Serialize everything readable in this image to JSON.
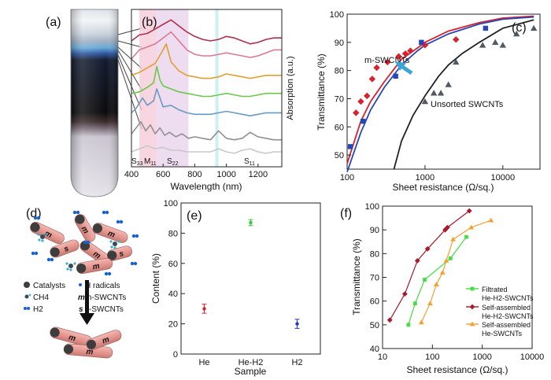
{
  "panels": {
    "a": {
      "label": "(a)"
    },
    "b": {
      "label": "(b)",
      "xlabel": "Wavelength (nm)",
      "ylabel": "Absorption (a.u.)",
      "xticks": [
        "400",
        "600",
        "800",
        "1000",
        "1200"
      ],
      "band_labels": [
        "S33",
        "M11",
        "S22",
        "S11"
      ]
    },
    "c": {
      "label": "(c)"
    },
    "d": {
      "label": "(d)",
      "legend": [
        {
          "key": "catalyst",
          "text": "Catalysts"
        },
        {
          "key": "hradical",
          "text": "H radicals"
        },
        {
          "key": "ch4",
          "text": "CH4"
        },
        {
          "key": "m",
          "text": "m-SWCNTs"
        },
        {
          "key": "h2",
          "text": "H2"
        },
        {
          "key": "s",
          "text": "s-SWCNTs"
        }
      ],
      "tube_letters": [
        "m",
        "s"
      ]
    },
    "e": {
      "label": "(e)"
    },
    "f": {
      "label": "(f)"
    }
  },
  "chart_data": [
    {
      "id": "b",
      "type": "line",
      "xlabel": "Wavelength (nm)",
      "ylabel": "Absorption (a.u.)",
      "xlim": [
        400,
        1350
      ],
      "series": [
        {
          "color": "#b0304a",
          "x": [
            400,
            450,
            500,
            550,
            600,
            650,
            700,
            750,
            800,
            850,
            900,
            950,
            1000,
            1050,
            1100,
            1150,
            1200,
            1250,
            1300,
            1350
          ],
          "y": [
            8.4,
            8.8,
            8.9,
            9.2,
            9.5,
            9.8,
            9.4,
            9.0,
            8.7,
            8.5,
            8.4,
            8.5,
            8.7,
            8.6,
            8.4,
            8.2,
            8.3,
            8.5,
            8.6,
            8.6
          ]
        },
        {
          "color": "#d97a90",
          "x": [
            400,
            450,
            500,
            550,
            600,
            650,
            700,
            750,
            800,
            850,
            900,
            950,
            1000,
            1050,
            1100,
            1150,
            1200,
            1250,
            1300,
            1350
          ],
          "y": [
            7.2,
            7.8,
            8.0,
            8.2,
            8.6,
            9.0,
            8.4,
            7.8,
            7.5,
            7.4,
            7.4,
            7.5,
            7.6,
            7.5,
            7.4,
            7.3,
            7.4,
            7.6,
            7.8,
            7.8
          ]
        },
        {
          "color": "#e0a030",
          "x": [
            400,
            450,
            500,
            550,
            600,
            620,
            650,
            700,
            750,
            800,
            850,
            900,
            950,
            1000,
            1050,
            1100,
            1150,
            1200,
            1250,
            1300,
            1350
          ],
          "y": [
            6.1,
            6.3,
            6.6,
            6.9,
            7.8,
            8.2,
            7.0,
            6.4,
            6.1,
            6.0,
            5.9,
            5.9,
            6.0,
            6.2,
            6.1,
            6.0,
            5.9,
            6.0,
            6.1,
            6.1,
            6.1
          ]
        },
        {
          "color": "#6ac94a",
          "x": [
            400,
            450,
            500,
            540,
            560,
            580,
            600,
            650,
            700,
            750,
            800,
            850,
            900,
            950,
            1000,
            1050,
            1100,
            1150,
            1200,
            1250,
            1300,
            1350
          ],
          "y": [
            4.9,
            5.0,
            5.3,
            5.6,
            6.7,
            5.8,
            5.4,
            5.2,
            5.0,
            4.9,
            4.8,
            4.7,
            4.7,
            4.8,
            4.9,
            4.8,
            4.7,
            4.7,
            4.8,
            4.9,
            4.9,
            4.9
          ]
        },
        {
          "color": "#6a9ac2",
          "x": [
            400,
            430,
            470,
            500,
            540,
            560,
            600,
            650,
            700,
            750,
            800,
            850,
            900,
            950,
            1000,
            1050,
            1100,
            1150,
            1200,
            1250,
            1300,
            1350
          ],
          "y": [
            3.6,
            3.9,
            4.6,
            4.1,
            4.4,
            5.2,
            4.0,
            4.1,
            3.8,
            3.6,
            3.5,
            3.5,
            3.5,
            3.6,
            3.7,
            3.6,
            3.5,
            3.4,
            3.5,
            3.6,
            3.6,
            3.6
          ]
        },
        {
          "color": "#909090",
          "x": [
            400,
            430,
            460,
            490,
            520,
            550,
            580,
            610,
            640,
            680,
            720,
            760,
            800,
            850,
            900,
            950,
            1000,
            1050,
            1100,
            1150,
            1200,
            1250,
            1300,
            1350
          ],
          "y": [
            2.2,
            2.6,
            3.0,
            2.4,
            2.8,
            2.2,
            2.6,
            2.1,
            2.3,
            2.0,
            2.2,
            1.9,
            2.0,
            1.9,
            1.8,
            2.4,
            1.9,
            1.8,
            1.9,
            2.3,
            2.0,
            1.9,
            1.8,
            1.8
          ]
        },
        {
          "color": "#c8c8c8",
          "x": [
            400,
            450,
            500,
            550,
            600,
            650,
            700,
            750,
            800,
            850,
            900,
            950,
            1000,
            1050,
            1100,
            1150,
            1200,
            1250,
            1300,
            1350
          ],
          "y": [
            1.0,
            1.2,
            1.4,
            1.2,
            1.3,
            1.1,
            1.1,
            1.0,
            1.0,
            1.0,
            1.0,
            1.2,
            1.0,
            0.9,
            1.1,
            1.2,
            1.0,
            0.9,
            1.0,
            1.0
          ]
        }
      ],
      "bands": [
        {
          "from": 450,
          "to": 560,
          "color": "#f4c8d8"
        },
        {
          "from": 560,
          "to": 760,
          "color": "#e8d0ec"
        },
        {
          "from": 930,
          "to": 950,
          "color": "#bfe9ef"
        }
      ]
    },
    {
      "id": "c",
      "type": "scatter",
      "xlabel": "Sheet resistance (Ω/sq.)",
      "ylabel": "Transmittance (%)",
      "xscale": "log",
      "xlim": [
        100,
        30000
      ],
      "ylim": [
        45,
        100
      ],
      "xticks": [
        100,
        1000,
        10000
      ],
      "yticks": [
        50,
        60,
        70,
        80,
        90,
        100
      ],
      "annotations": [
        "m-SWCNTs",
        "Unsorted SWCNTs"
      ],
      "series": [
        {
          "marker": "diamond",
          "color": "#d6222e",
          "x": [
            130,
            150,
            180,
            210,
            240,
            330,
            460,
            560,
            650,
            1000,
            2500
          ],
          "y": [
            65,
            69,
            71,
            77,
            81,
            83,
            85,
            86,
            87,
            89,
            91
          ]
        },
        {
          "marker": "square",
          "color": "#2747b8",
          "x": [
            110,
            160,
            420,
            900,
            6000
          ],
          "y": [
            53,
            62,
            78,
            90,
            95
          ]
        },
        {
          "marker": "triangle",
          "color": "#505a64",
          "x": [
            1000,
            1300,
            1600,
            2000,
            2500,
            5500,
            8000,
            10000,
            15000,
            25000
          ],
          "y": [
            69,
            72,
            72,
            75,
            83,
            89,
            90,
            89,
            93,
            95
          ]
        }
      ],
      "curves": [
        {
          "color": "#d6222e",
          "x": [
            100,
            150,
            200,
            300,
            500,
            800,
            1000,
            2000,
            5000,
            10000,
            25000
          ],
          "y": [
            47,
            62,
            69,
            76,
            84,
            88,
            90,
            94,
            97,
            98.6,
            99.3
          ]
        },
        {
          "color": "#2747b8",
          "x": [
            100,
            150,
            200,
            300,
            500,
            800,
            1000,
            2000,
            5000,
            10000,
            25000
          ],
          "y": [
            44,
            58,
            66,
            74,
            82,
            87,
            89,
            93,
            96.5,
            98.2,
            99
          ]
        },
        {
          "color": "#222222",
          "x": [
            400,
            500,
            700,
            1000,
            1500,
            2000,
            3000,
            5000,
            10000,
            25000
          ],
          "y": [
            45,
            55,
            64,
            71,
            78,
            82,
            86,
            90,
            95,
            98
          ]
        }
      ]
    },
    {
      "id": "e",
      "type": "scatter",
      "xlabel": "Sample",
      "ylabel": "Content (%)",
      "ylim": [
        0,
        100
      ],
      "yticks": [
        0,
        20,
        40,
        60,
        80,
        100
      ],
      "categories": [
        "He",
        "He-H2",
        "H2"
      ],
      "colors": [
        "#d6222e",
        "#3ac43a",
        "#2435c8"
      ],
      "values": [
        30,
        87,
        20
      ],
      "errors": [
        3,
        2,
        3
      ]
    },
    {
      "id": "f",
      "type": "line",
      "xlabel": "Sheet resistance (Ω/sq.)",
      "ylabel": "Transmittance (%)",
      "xscale": "log",
      "xlim": [
        10,
        10000
      ],
      "ylim": [
        40,
        100
      ],
      "xticks": [
        10,
        100,
        1000,
        10000
      ],
      "yticks": [
        40,
        50,
        60,
        70,
        80,
        90,
        100
      ],
      "series": [
        {
          "name": "Filtrated He-H2-SWCNTs",
          "marker": "square",
          "color": "#44dd44",
          "x": [
            33,
            45,
            70,
            230,
            480
          ],
          "y": [
            50,
            59,
            69,
            78,
            87
          ]
        },
        {
          "name": "Self-assembled He-H2-SWCNTs",
          "marker": "diamond",
          "color": "#a81a2c",
          "x": [
            14,
            28,
            50,
            80,
            180,
            200,
            550
          ],
          "y": [
            52,
            63,
            77,
            82,
            90,
            91,
            98
          ]
        },
        {
          "name": "Self-assembled He-SWCNTs",
          "marker": "triangle",
          "color": "#f4a030",
          "x": [
            60,
            90,
            120,
            160,
            190,
            260,
            600,
            1500
          ],
          "y": [
            51,
            59,
            67,
            72,
            77,
            86,
            91,
            94
          ]
        }
      ]
    }
  ]
}
